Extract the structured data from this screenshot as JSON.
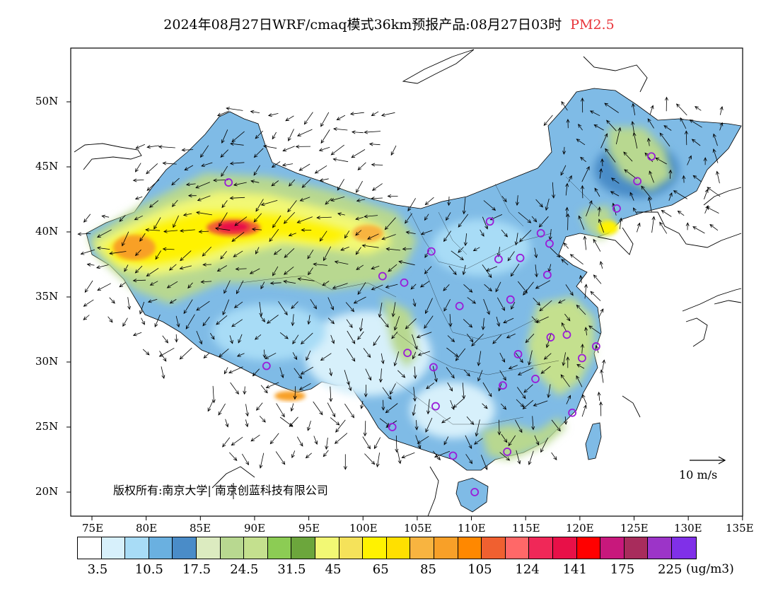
{
  "title": {
    "main": "2024年08月27日WRF/cmaq模式36km预报产品:08月27日03时",
    "pollutant": "PM2.5"
  },
  "axes": {
    "lat_labels": [
      "50N",
      "45N",
      "40N",
      "35N",
      "30N",
      "25N",
      "20N"
    ],
    "lon_labels": [
      "75E",
      "80E",
      "85E",
      "90E",
      "95E",
      "100E",
      "105E",
      "110E",
      "115E",
      "120E",
      "125E",
      "130E",
      "135E"
    ]
  },
  "copyright": "版权所有:南京大学| 南京创蓝科技有限公司",
  "wind_scale_label": "10 m/s",
  "colorbar": {
    "colors": [
      "#ffffff",
      "#d7f0fb",
      "#a8dcf6",
      "#6ab0e0",
      "#4a8cc8",
      "#dcebc0",
      "#b8d890",
      "#c4e08e",
      "#8ccc54",
      "#6ca63c",
      "#f2f874",
      "#f5e25a",
      "#fff200",
      "#ffe000",
      "#f8b440",
      "#f8a028",
      "#ff8800",
      "#f06030",
      "#ff6868",
      "#f02858",
      "#e81048",
      "#ff0000",
      "#c8187c",
      "#a82c5c",
      "#9c34c8",
      "#8030e8"
    ],
    "labels": [
      "3.5",
      "10.5",
      "17.5",
      "24.5",
      "31.5",
      "45",
      "65",
      "85",
      "105",
      "124",
      "141",
      "175",
      "225"
    ],
    "units": "(ug/m3)"
  },
  "stations": [
    {
      "lon": 87.6,
      "lat": 43.8
    },
    {
      "lon": 91.1,
      "lat": 29.7
    },
    {
      "lon": 101.8,
      "lat": 36.6
    },
    {
      "lon": 103.8,
      "lat": 36.1
    },
    {
      "lon": 106.3,
      "lat": 38.5
    },
    {
      "lon": 111.7,
      "lat": 40.8
    },
    {
      "lon": 112.5,
      "lat": 37.9
    },
    {
      "lon": 114.5,
      "lat": 38.0
    },
    {
      "lon": 116.4,
      "lat": 39.9
    },
    {
      "lon": 117.2,
      "lat": 39.1
    },
    {
      "lon": 117.0,
      "lat": 36.7
    },
    {
      "lon": 113.6,
      "lat": 34.8
    },
    {
      "lon": 108.9,
      "lat": 34.3
    },
    {
      "lon": 104.1,
      "lat": 30.7
    },
    {
      "lon": 106.5,
      "lat": 29.6
    },
    {
      "lon": 106.7,
      "lat": 26.6
    },
    {
      "lon": 102.7,
      "lat": 25.0
    },
    {
      "lon": 108.3,
      "lat": 22.8
    },
    {
      "lon": 113.3,
      "lat": 23.1
    },
    {
      "lon": 110.3,
      "lat": 20.0
    },
    {
      "lon": 112.9,
      "lat": 28.2
    },
    {
      "lon": 114.3,
      "lat": 30.6
    },
    {
      "lon": 115.9,
      "lat": 28.7
    },
    {
      "lon": 117.3,
      "lat": 31.9
    },
    {
      "lon": 118.8,
      "lat": 32.1
    },
    {
      "lon": 120.2,
      "lat": 30.3
    },
    {
      "lon": 121.5,
      "lat": 31.2
    },
    {
      "lon": 119.3,
      "lat": 26.1
    },
    {
      "lon": 123.4,
      "lat": 41.8
    },
    {
      "lon": 125.3,
      "lat": 43.9
    },
    {
      "lon": 126.6,
      "lat": 45.8
    }
  ]
}
